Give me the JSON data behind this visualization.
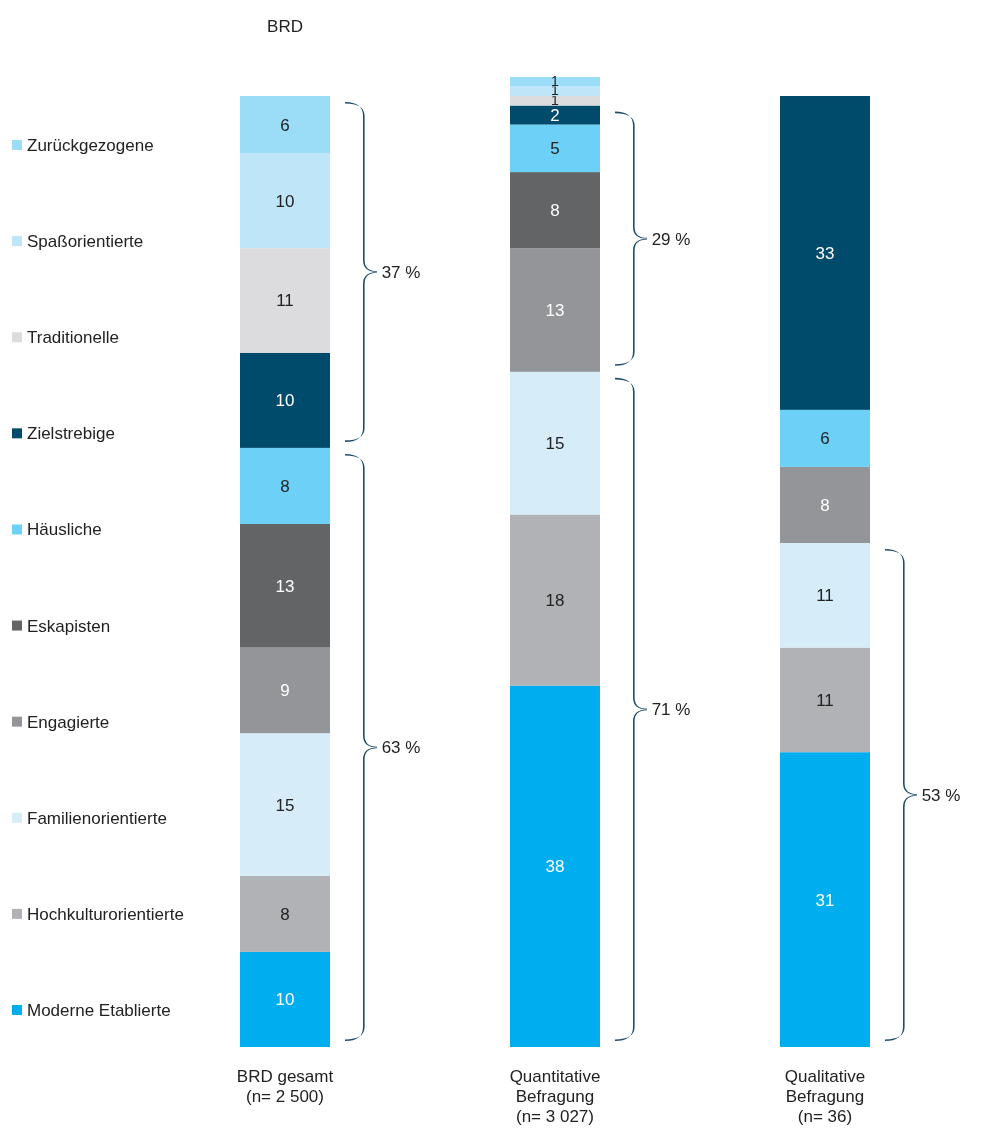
{
  "chart_data": {
    "type": "bar",
    "stacked": true,
    "data_labels": true,
    "legend": "left",
    "ylim": [
      0,
      102
    ],
    "categories": [
      "BRD gesamt (n= 2 500)",
      "Quantitative Befragung (n= 3 027)",
      "Qualitative Befragung (n= 36)"
    ],
    "series": [
      {
        "name": "Moderne Etablierte",
        "color": "#00adef",
        "values": [
          10,
          38,
          31
        ]
      },
      {
        "name": "Hochkulturorientierte",
        "color": "#b1b2b5",
        "values": [
          8,
          18,
          11
        ]
      },
      {
        "name": "Familienorientierte",
        "color": "#d6ecf9",
        "values": [
          15,
          15,
          11
        ]
      },
      {
        "name": "Engagierte",
        "color": "#939598",
        "values": [
          9,
          13,
          8
        ]
      },
      {
        "name": "Eskapisten",
        "color": "#636466",
        "values": [
          13,
          8,
          null
        ]
      },
      {
        "name": "Häusliche",
        "color": "#6dd0f7",
        "values": [
          8,
          5,
          6
        ]
      },
      {
        "name": "Zielstrebige",
        "color": "#004a6b",
        "values": [
          10,
          2,
          33
        ]
      },
      {
        "name": "Traditionelle",
        "color": "#dcdcde",
        "values": [
          11,
          1,
          null
        ]
      },
      {
        "name": "Spaßorientierte",
        "color": "#bfe5f8",
        "values": [
          10,
          1,
          null
        ]
      },
      {
        "name": "Zurückgezogene",
        "color": "#9bdcf7",
        "values": [
          6,
          1,
          null
        ]
      }
    ],
    "annotations": [
      "BRD",
      "63 %",
      "37 %",
      "71 %",
      "29 %",
      "53 %"
    ]
  }
}
